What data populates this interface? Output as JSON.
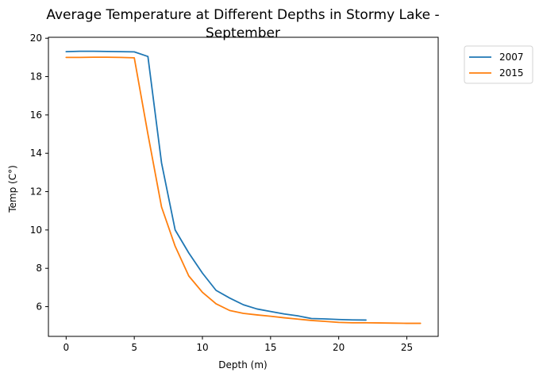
{
  "chart_data": {
    "type": "line",
    "title_lines": [
      "Average Temperature at Different Depths in Stormy Lake -",
      "September"
    ],
    "xlabel": "Depth (m)",
    "ylabel": "Temp (C°)",
    "xlim": [
      -1.3,
      27.3
    ],
    "ylim": [
      4.45,
      20.05
    ],
    "xticks": [
      0,
      5,
      10,
      15,
      20,
      25
    ],
    "yticks": [
      6,
      8,
      10,
      12,
      14,
      16,
      18,
      20
    ],
    "grid": false,
    "legend_position": "outside-top-right",
    "series": [
      {
        "name": "2007",
        "color": "#1f77b4",
        "x": [
          0,
          1,
          2,
          3,
          4,
          5,
          6,
          7,
          8,
          9,
          10,
          11,
          12,
          13,
          14,
          15,
          16,
          17,
          18,
          19,
          20,
          21,
          22
        ],
        "y": [
          19.3,
          19.32,
          19.32,
          19.31,
          19.3,
          19.29,
          19.05,
          13.5,
          10.0,
          8.8,
          7.75,
          6.85,
          6.45,
          6.1,
          5.88,
          5.75,
          5.62,
          5.52,
          5.38,
          5.36,
          5.33,
          5.31,
          5.3
        ]
      },
      {
        "name": "2015",
        "color": "#ff7f0e",
        "x": [
          0,
          1,
          2,
          3,
          4,
          5,
          6,
          7,
          8,
          9,
          10,
          11,
          12,
          13,
          14,
          15,
          16,
          17,
          18,
          19,
          20,
          21,
          22,
          23,
          24,
          25,
          26
        ],
        "y": [
          19.0,
          19.0,
          19.01,
          19.01,
          19.0,
          18.98,
          15.0,
          11.2,
          9.15,
          7.6,
          6.75,
          6.15,
          5.8,
          5.65,
          5.57,
          5.5,
          5.42,
          5.35,
          5.28,
          5.23,
          5.18,
          5.16,
          5.16,
          5.15,
          5.14,
          5.13,
          5.13
        ]
      }
    ]
  }
}
